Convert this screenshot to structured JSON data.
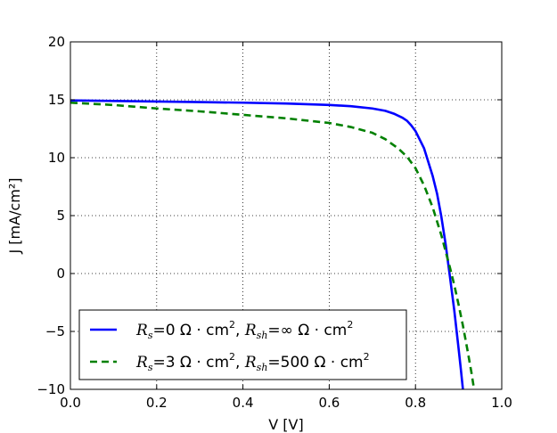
{
  "chart_data": {
    "type": "line",
    "xlabel": "V [V]",
    "ylabel": "J [mA/cm²]",
    "xlim": [
      0.0,
      1.0
    ],
    "ylim": [
      -10,
      20
    ],
    "xticks": [
      "0.0",
      "0.2",
      "0.4",
      "0.6",
      "0.8",
      "1.0"
    ],
    "yticks": [
      "−10",
      "−5",
      "0",
      "5",
      "10",
      "15",
      "20"
    ],
    "grid": true,
    "legend_position": "lower-left",
    "series": [
      {
        "name": "Rs=0 Ω·cm², Rsh=∞ Ω·cm²",
        "color": "#0000ff",
        "style": "solid",
        "x": [
          0.0,
          0.1,
          0.2,
          0.3,
          0.4,
          0.5,
          0.6,
          0.65,
          0.7,
          0.73,
          0.75,
          0.77,
          0.78,
          0.79,
          0.8,
          0.82,
          0.84,
          0.85,
          0.86,
          0.87,
          0.88,
          0.89,
          0.9,
          0.905,
          0.91,
          0.915
        ],
        "y": [
          14.95,
          14.9,
          14.85,
          14.8,
          14.75,
          14.68,
          14.55,
          14.45,
          14.25,
          14.05,
          13.8,
          13.45,
          13.2,
          12.8,
          12.3,
          10.8,
          8.4,
          6.9,
          4.9,
          2.5,
          -0.3,
          -3.2,
          -6.5,
          -8.2,
          -10.0,
          -11.5
        ]
      },
      {
        "name": "Rs=3 Ω·cm², Rsh=500 Ω·cm²",
        "color": "#008000",
        "style": "dashed",
        "x": [
          0.0,
          0.1,
          0.2,
          0.3,
          0.4,
          0.5,
          0.6,
          0.65,
          0.7,
          0.73,
          0.76,
          0.78,
          0.8,
          0.82,
          0.84,
          0.86,
          0.87,
          0.88,
          0.89,
          0.9,
          0.91,
          0.92,
          0.93,
          0.935,
          0.94
        ],
        "y": [
          14.75,
          14.55,
          14.25,
          14.0,
          13.7,
          13.4,
          13.0,
          12.65,
          12.15,
          11.6,
          10.8,
          10.1,
          9.1,
          7.6,
          5.7,
          3.3,
          1.9,
          0.5,
          -1.0,
          -2.7,
          -4.5,
          -6.5,
          -8.6,
          -9.8,
          -11.0
        ]
      }
    ]
  },
  "legend": {
    "entry1": {
      "rs_symbol": "R",
      "rs_sub": "s",
      "rs_value": "=0 Ω · cm",
      "sup2": "2",
      "sep": ", ",
      "rsh_symbol": "R",
      "rsh_sub": "sh",
      "rsh_value": "=∞ Ω · cm",
      "sup2b": "2"
    },
    "entry2": {
      "rs_symbol": "R",
      "rs_sub": "s",
      "rs_value": "=3 Ω · cm",
      "sup2": "2",
      "sep": ", ",
      "rsh_symbol": "R",
      "rsh_sub": "sh",
      "rsh_value": "=500 Ω · cm",
      "sup2b": "2"
    }
  }
}
